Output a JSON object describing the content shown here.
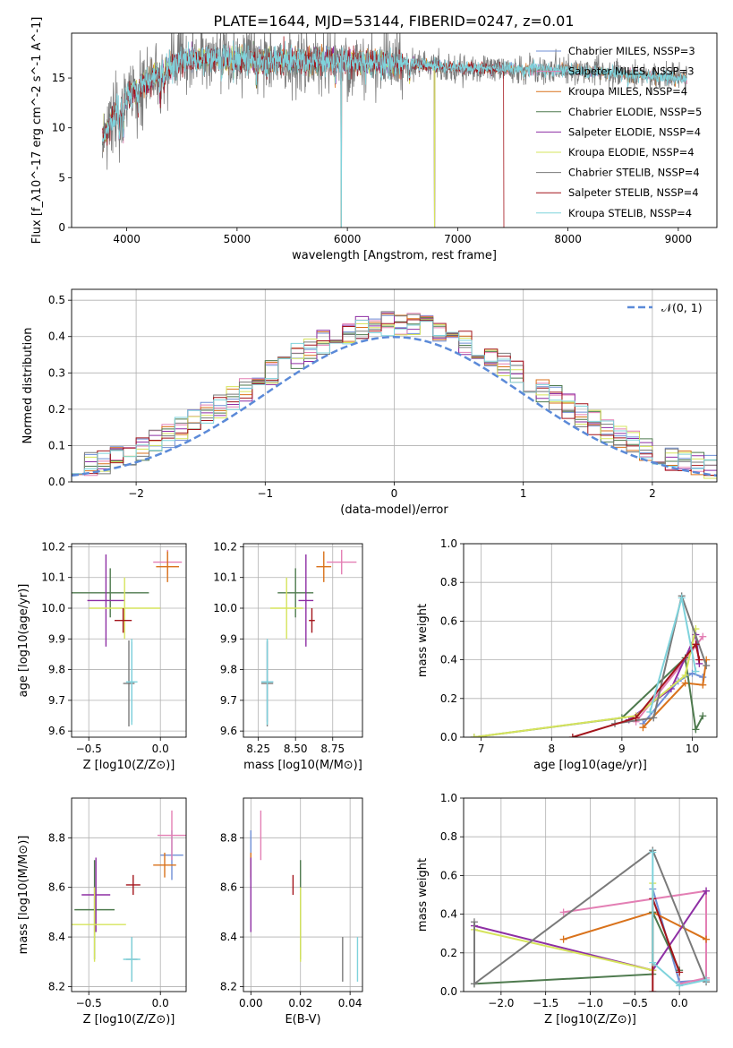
{
  "figure_title": "PLATE=1644, MJD=53144, FIBERID=0247, z=0.01",
  "colors": {
    "chabrier_miles": "#6f8fd6",
    "salpeter_miles": "#e37fb4",
    "kroupa_miles": "#d9721b",
    "chabrier_elodie": "#4e7a4e",
    "salpeter_elodie": "#8e2fa4",
    "kroupa_elodie": "#d6e45c",
    "chabrier_stelib": "#7a7a7a",
    "salpeter_stelib": "#a3141b",
    "kroupa_stelib": "#7fd3dc",
    "grid": "#b0b0b0",
    "normal_curve": "#5b8ad8"
  },
  "chart_data": [
    {
      "id": "spectrum",
      "type": "line",
      "xlabel": "wavelength [Angstrom, rest frame]",
      "ylabel": "Flux [f_λ10^-17 erg cm^-2 s^-1 A^-1]",
      "xlim": [
        3500,
        9350
      ],
      "ylim": [
        0,
        19.5
      ],
      "xticks": [
        4000,
        5000,
        6000,
        7000,
        8000,
        9000
      ],
      "yticks": [
        0,
        5,
        10,
        15
      ],
      "legend_position": "top-right",
      "continuum": {
        "x": [
          3780,
          3900,
          4000,
          4150,
          4300,
          4500,
          4800,
          5200,
          5600,
          6000,
          6500,
          7000,
          7500,
          8000,
          8500,
          9000,
          9100
        ],
        "y": [
          9.0,
          11.5,
          13.0,
          14.3,
          15.5,
          16.8,
          17.0,
          16.8,
          16.7,
          16.6,
          16.5,
          16.0,
          15.9,
          15.8,
          15.4,
          15.0,
          15.0
        ]
      },
      "series": [
        {
          "name": "Chabrier MILES, N_SSP=3",
          "color_key": "chabrier_miles",
          "noise": 0.5,
          "xmax": 9080,
          "dropouts": [
            5945
          ]
        },
        {
          "name": "Salpeter MILES, N_SSP=3",
          "color_key": "salpeter_miles",
          "noise": 0.5,
          "xmax": 9080,
          "dropouts": [
            5945
          ]
        },
        {
          "name": "Kroupa MILES, N_SSP=4",
          "color_key": "kroupa_miles",
          "noise": 0.55,
          "xmax": 9080,
          "dropouts": [
            5945
          ]
        },
        {
          "name": "Chabrier ELODIE, N_SSP=5",
          "color_key": "chabrier_elodie",
          "noise": 0.5,
          "xmax": 6800,
          "dropouts": [
            6790
          ]
        },
        {
          "name": "Salpeter ELODIE, N_SSP=4",
          "color_key": "salpeter_elodie",
          "noise": 0.55,
          "xmax": 6800,
          "dropouts": [
            6790
          ]
        },
        {
          "name": "Kroupa ELODIE, N_SSP=4",
          "color_key": "kroupa_elodie",
          "noise": 0.55,
          "xmax": 6800,
          "dropouts": [
            6790
          ]
        },
        {
          "name": "Chabrier STELIB, N_SSP=4",
          "color_key": "chabrier_stelib",
          "noise": 1.6,
          "xmax": 9080,
          "dropouts": []
        },
        {
          "name": "Salpeter STELIB, N_SSP=4",
          "color_key": "salpeter_stelib",
          "noise": 0.6,
          "xmax": 7420,
          "dropouts": [
            7420
          ]
        },
        {
          "name": "Kroupa STELIB, N_SSP=4",
          "color_key": "kroupa_stelib",
          "noise": 0.7,
          "xmax": 9080,
          "dropouts": [
            5945
          ]
        }
      ]
    },
    {
      "id": "residual_hist",
      "type": "line",
      "xlabel": "(data-model)/error",
      "ylabel": "Normed distribution",
      "xlim": [
        -2.5,
        2.5
      ],
      "ylim": [
        0,
        0.53
      ],
      "xticks": [
        -2,
        -1,
        0,
        1,
        2
      ],
      "yticks": [
        0.0,
        0.1,
        0.2,
        0.3,
        0.4,
        0.5
      ],
      "bin_width": 0.1,
      "legend_position": "top-right",
      "reference_curve": {
        "name": "𝒩(0, 1)",
        "mean": 0,
        "sigma": 1
      },
      "histogram_scatter": 0.035
    },
    {
      "id": "age_vs_Z",
      "type": "scatter",
      "xlabel": "Z [log10(Z/Z⊙)]",
      "ylabel": "age  [log10(age/yr)]",
      "xlim": [
        -0.62,
        0.18
      ],
      "ylim": [
        9.58,
        10.21
      ],
      "xticks": [
        -0.5,
        0.0
      ],
      "yticks": [
        9.6,
        9.7,
        9.8,
        9.9,
        10.0,
        10.1,
        10.2
      ],
      "points": [
        {
          "model": "chabrier_miles",
          "x": -0.2,
          "y": 9.76,
          "xerr": 0.02,
          "yerr": 0.13
        },
        {
          "model": "salpeter_miles",
          "x": 0.05,
          "y": 10.15,
          "xerr": 0.1,
          "yerr": 0.04
        },
        {
          "model": "kroupa_miles",
          "x": 0.05,
          "y": 10.135,
          "xerr": 0.08,
          "yerr": 0.05
        },
        {
          "model": "chabrier_elodie",
          "x": -0.35,
          "y": 10.05,
          "xerr": 0.27,
          "yerr": 0.08
        },
        {
          "model": "salpeter_elodie",
          "x": -0.38,
          "y": 10.025,
          "xerr": 0.13,
          "yerr": 0.15
        },
        {
          "model": "kroupa_elodie",
          "x": -0.25,
          "y": 10.0,
          "xerr": 0.25,
          "yerr": 0.1
        },
        {
          "model": "chabrier_stelib",
          "x": -0.22,
          "y": 9.755,
          "xerr": 0.04,
          "yerr": 0.14
        },
        {
          "model": "salpeter_stelib",
          "x": -0.26,
          "y": 9.96,
          "xerr": 0.06,
          "yerr": 0.04
        },
        {
          "model": "kroupa_stelib",
          "x": -0.2,
          "y": 9.76,
          "xerr": 0.04,
          "yerr": 0.14
        }
      ]
    },
    {
      "id": "age_vs_mass",
      "type": "scatter",
      "xlabel": "mass [log10(M/M⊙)]",
      "xlim": [
        8.15,
        8.95
      ],
      "ylim": [
        9.58,
        10.21
      ],
      "xticks": [
        8.25,
        8.5,
        8.75
      ],
      "yticks": [
        9.6,
        9.7,
        9.8,
        9.9,
        10.0,
        10.1,
        10.2
      ],
      "points": [
        {
          "model": "chabrier_miles",
          "x": 8.31,
          "y": 9.76,
          "xerr": 0.04,
          "yerr": 0.13
        },
        {
          "model": "salpeter_miles",
          "x": 8.81,
          "y": 10.15,
          "xerr": 0.1,
          "yerr": 0.04
        },
        {
          "model": "kroupa_miles",
          "x": 8.69,
          "y": 10.135,
          "xerr": 0.05,
          "yerr": 0.05
        },
        {
          "model": "chabrier_elodie",
          "x": 8.5,
          "y": 10.05,
          "xerr": 0.12,
          "yerr": 0.08
        },
        {
          "model": "salpeter_elodie",
          "x": 8.57,
          "y": 10.025,
          "xerr": 0.05,
          "yerr": 0.15
        },
        {
          "model": "kroupa_elodie",
          "x": 8.44,
          "y": 10.0,
          "xerr": 0.11,
          "yerr": 0.1
        },
        {
          "model": "chabrier_stelib",
          "x": 8.31,
          "y": 9.755,
          "xerr": 0.04,
          "yerr": 0.14
        },
        {
          "model": "salpeter_stelib",
          "x": 8.61,
          "y": 9.96,
          "xerr": 0.02,
          "yerr": 0.04
        },
        {
          "model": "kroupa_stelib",
          "x": 8.31,
          "y": 9.76,
          "xerr": 0.04,
          "yerr": 0.14
        }
      ]
    },
    {
      "id": "weight_vs_age",
      "type": "line",
      "xlabel": "age  [log10(age/yr)]",
      "ylabel": "mass weight",
      "xlim": [
        6.75,
        10.35
      ],
      "ylim": [
        0,
        1.0
      ],
      "xticks": [
        7,
        8,
        9,
        10
      ],
      "yticks": [
        0.0,
        0.2,
        0.4,
        0.6,
        0.8,
        1.0
      ],
      "series": [
        {
          "model": "chabrier_miles",
          "x": [
            9.3,
            9.8,
            10.0,
            10.15
          ],
          "y": [
            0.07,
            0.29,
            0.33,
            0.31
          ]
        },
        {
          "model": "salpeter_miles",
          "x": [
            9.2,
            9.9,
            10.15
          ],
          "y": [
            0.08,
            0.4,
            0.52
          ]
        },
        {
          "model": "kroupa_miles",
          "x": [
            9.3,
            9.9,
            10.15,
            10.2
          ],
          "y": [
            0.05,
            0.28,
            0.27,
            0.4
          ]
        },
        {
          "model": "chabrier_elodie",
          "x": [
            6.9,
            9.0,
            9.9,
            10.05,
            10.15
          ],
          "y": [
            0.0,
            0.1,
            0.41,
            0.04,
            0.11
          ]
        },
        {
          "model": "salpeter_elodie",
          "x": [
            9.1,
            9.7,
            10.05,
            10.1
          ],
          "y": [
            0.09,
            0.25,
            0.53,
            0.38
          ]
        },
        {
          "model": "kroupa_elodie",
          "x": [
            6.9,
            9.2,
            9.9,
            10.05
          ],
          "y": [
            0.0,
            0.11,
            0.32,
            0.56
          ]
        },
        {
          "model": "chabrier_stelib",
          "x": [
            8.9,
            9.45,
            9.85,
            10.2
          ],
          "y": [
            0.07,
            0.1,
            0.73,
            0.37
          ]
        },
        {
          "model": "salpeter_stelib",
          "x": [
            8.3,
            9.2,
            10.05,
            10.1
          ],
          "y": [
            0.0,
            0.1,
            0.48,
            0.4
          ]
        },
        {
          "model": "kroupa_stelib",
          "x": [
            9.4,
            9.85,
            10.05
          ],
          "y": [
            0.13,
            0.72,
            0.34
          ]
        }
      ]
    },
    {
      "id": "mass_vs_Z",
      "type": "scatter",
      "xlabel": "Z [log10(Z/Z⊙)]",
      "ylabel": "mass [log10(M/M⊙)]",
      "xlim": [
        -0.62,
        0.18
      ],
      "ylim": [
        8.18,
        8.96
      ],
      "xticks": [
        -0.5,
        0.0
      ],
      "yticks": [
        8.2,
        8.4,
        8.6,
        8.8
      ],
      "points": [
        {
          "model": "chabrier_miles",
          "x": 0.08,
          "y": 8.73,
          "xerr": 0.08,
          "yerr": 0.1
        },
        {
          "model": "salpeter_miles",
          "x": 0.08,
          "y": 8.81,
          "xerr": 0.1,
          "yerr": 0.1
        },
        {
          "model": "kroupa_miles",
          "x": 0.03,
          "y": 8.69,
          "xerr": 0.08,
          "yerr": 0.05
        },
        {
          "model": "chabrier_elodie",
          "x": -0.46,
          "y": 8.51,
          "xerr": 0.14,
          "yerr": 0.2
        },
        {
          "model": "salpeter_elodie",
          "x": -0.45,
          "y": 8.57,
          "xerr": 0.1,
          "yerr": 0.15
        },
        {
          "model": "kroupa_elodie",
          "x": -0.46,
          "y": 8.45,
          "xerr": 0.22,
          "yerr": 0.15
        },
        {
          "model": "chabrier_stelib",
          "x": -0.2,
          "y": 8.31,
          "xerr": 0.04,
          "yerr": 0.09
        },
        {
          "model": "salpeter_stelib",
          "x": -0.19,
          "y": 8.61,
          "xerr": 0.05,
          "yerr": 0.04
        },
        {
          "model": "kroupa_stelib",
          "x": -0.2,
          "y": 8.31,
          "xerr": 0.06,
          "yerr": 0.09
        }
      ]
    },
    {
      "id": "mass_vs_ebv",
      "type": "scatter",
      "xlabel": "E(B-V)",
      "xlim": [
        -0.003,
        0.045
      ],
      "ylim": [
        8.18,
        8.96
      ],
      "xticks": [
        0.0,
        0.02,
        0.04
      ],
      "yticks": [
        8.2,
        8.4,
        8.6,
        8.8
      ],
      "points": [
        {
          "model": "chabrier_miles",
          "x": 0.0,
          "y": 8.73,
          "xerr": 0.0,
          "yerr": 0.1
        },
        {
          "model": "salpeter_miles",
          "x": 0.004,
          "y": 8.81,
          "xerr": 0.0,
          "yerr": 0.1
        },
        {
          "model": "kroupa_miles",
          "x": 0.0,
          "y": 8.69,
          "xerr": 0.0,
          "yerr": 0.05
        },
        {
          "model": "chabrier_elodie",
          "x": 0.02,
          "y": 8.51,
          "xerr": 0.0,
          "yerr": 0.2
        },
        {
          "model": "salpeter_elodie",
          "x": 0.0,
          "y": 8.57,
          "xerr": 0.0,
          "yerr": 0.15
        },
        {
          "model": "kroupa_elodie",
          "x": 0.02,
          "y": 8.45,
          "xerr": 0.0,
          "yerr": 0.15
        },
        {
          "model": "chabrier_stelib",
          "x": 0.037,
          "y": 8.31,
          "xerr": 0.0,
          "yerr": 0.09
        },
        {
          "model": "salpeter_stelib",
          "x": 0.017,
          "y": 8.61,
          "xerr": 0.0,
          "yerr": 0.04
        },
        {
          "model": "kroupa_stelib",
          "x": 0.043,
          "y": 8.31,
          "xerr": 0.0,
          "yerr": 0.09
        }
      ]
    },
    {
      "id": "weight_vs_Z",
      "type": "line",
      "xlabel": "Z [log10(Z/Z⊙)]",
      "ylabel": "mass weight",
      "xlim": [
        -2.42,
        0.42
      ],
      "ylim": [
        0,
        1.0
      ],
      "xticks": [
        -2.0,
        -1.5,
        -1.0,
        -0.5,
        0.0
      ],
      "yticks": [
        0.0,
        0.2,
        0.4,
        0.6,
        0.8,
        1.0
      ],
      "series": [
        {
          "model": "chabrier_miles",
          "x": [
            -0.3,
            0.0,
            0.3
          ],
          "y": [
            0.53,
            0.05,
            0.06
          ]
        },
        {
          "model": "salpeter_miles",
          "x": [
            -1.3,
            0.3,
            0.3,
            0.0
          ],
          "y": [
            0.41,
            0.52,
            0.07,
            0.04
          ]
        },
        {
          "model": "kroupa_miles",
          "x": [
            -1.3,
            -0.3,
            0.3
          ],
          "y": [
            0.27,
            0.41,
            0.27
          ]
        },
        {
          "model": "chabrier_elodie",
          "x": [
            -2.3,
            -0.3,
            -0.3,
            0.0
          ],
          "y": [
            0.04,
            0.09,
            0.41,
            0.11
          ]
        },
        {
          "model": "salpeter_elodie",
          "x": [
            -2.3,
            -0.3,
            0.3
          ],
          "y": [
            0.34,
            0.11,
            0.52
          ]
        },
        {
          "model": "kroupa_elodie",
          "x": [
            -2.3,
            -0.3,
            -0.3
          ],
          "y": [
            0.32,
            0.11,
            0.56
          ]
        },
        {
          "model": "chabrier_stelib",
          "x": [
            -2.3,
            -2.3,
            -0.3,
            0.3
          ],
          "y": [
            0.36,
            0.04,
            0.73,
            0.05
          ]
        },
        {
          "model": "salpeter_stelib",
          "x": [
            -0.3,
            -0.3,
            0.0
          ],
          "y": [
            0.0,
            0.48,
            0.1
          ]
        },
        {
          "model": "kroupa_stelib",
          "x": [
            -0.3,
            -0.3,
            0.0,
            0.3
          ],
          "y": [
            0.72,
            0.15,
            0.03,
            0.06
          ]
        }
      ]
    }
  ]
}
